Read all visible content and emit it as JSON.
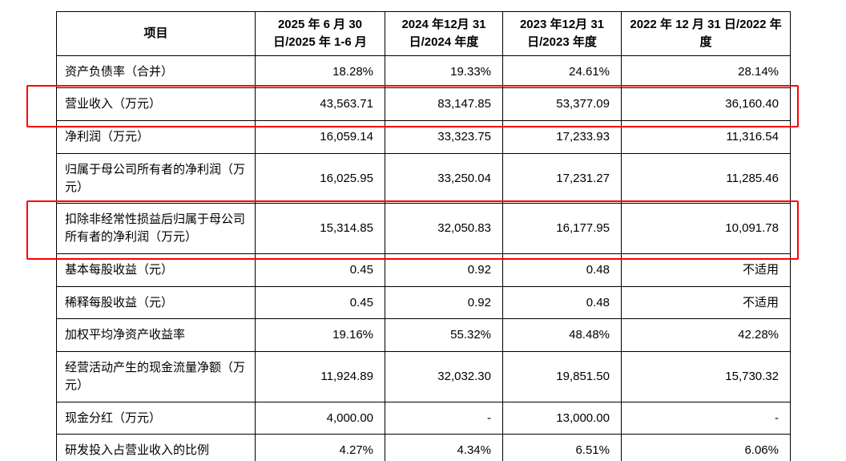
{
  "table": {
    "highlight_color": "#ff0000",
    "columns": [
      {
        "label": "项目"
      },
      {
        "label": "2025 年 6 月 30 日/2025 年 1-6 月"
      },
      {
        "label": "2024 年12月 31 日/2024 年度"
      },
      {
        "label": "2023 年12月 31 日/2023 年度"
      },
      {
        "label": "2022 年 12 月 31 日/2022 年度"
      }
    ],
    "rows": [
      {
        "label": "资产负债率（合并）",
        "values": [
          "18.28%",
          "19.33%",
          "24.61%",
          "28.14%"
        ],
        "highlight": false
      },
      {
        "label": "营业收入（万元）",
        "values": [
          "43,563.71",
          "83,147.85",
          "53,377.09",
          "36,160.40"
        ],
        "highlight": true
      },
      {
        "label": "净利润（万元）",
        "values": [
          "16,059.14",
          "33,323.75",
          "17,233.93",
          "11,316.54"
        ],
        "highlight": false
      },
      {
        "label": "归属于母公司所有者的净利润（万元）",
        "values": [
          "16,025.95",
          "33,250.04",
          "17,231.27",
          "11,285.46"
        ],
        "highlight": false
      },
      {
        "label": "扣除非经常性损益后归属于母公司所有者的净利润（万元）",
        "values": [
          "15,314.85",
          "32,050.83",
          "16,177.95",
          "10,091.78"
        ],
        "highlight": true
      },
      {
        "label": "基本每股收益（元）",
        "values": [
          "0.45",
          "0.92",
          "0.48",
          "不适用"
        ],
        "highlight": false
      },
      {
        "label": "稀释每股收益（元）",
        "values": [
          "0.45",
          "0.92",
          "0.48",
          "不适用"
        ],
        "highlight": false
      },
      {
        "label": "加权平均净资产收益率",
        "values": [
          "19.16%",
          "55.32%",
          "48.48%",
          "42.28%"
        ],
        "highlight": false
      },
      {
        "label": "经营活动产生的现金流量净额（万元）",
        "values": [
          "11,924.89",
          "32,032.30",
          "19,851.50",
          "15,730.32"
        ],
        "highlight": false
      },
      {
        "label": "现金分红（万元）",
        "values": [
          "4,000.00",
          "-",
          "13,000.00",
          "-"
        ],
        "highlight": false
      },
      {
        "label": "研发投入占营业收入的比例",
        "values": [
          "4.27%",
          "4.34%",
          "6.51%",
          "6.06%"
        ],
        "highlight": false
      }
    ]
  }
}
